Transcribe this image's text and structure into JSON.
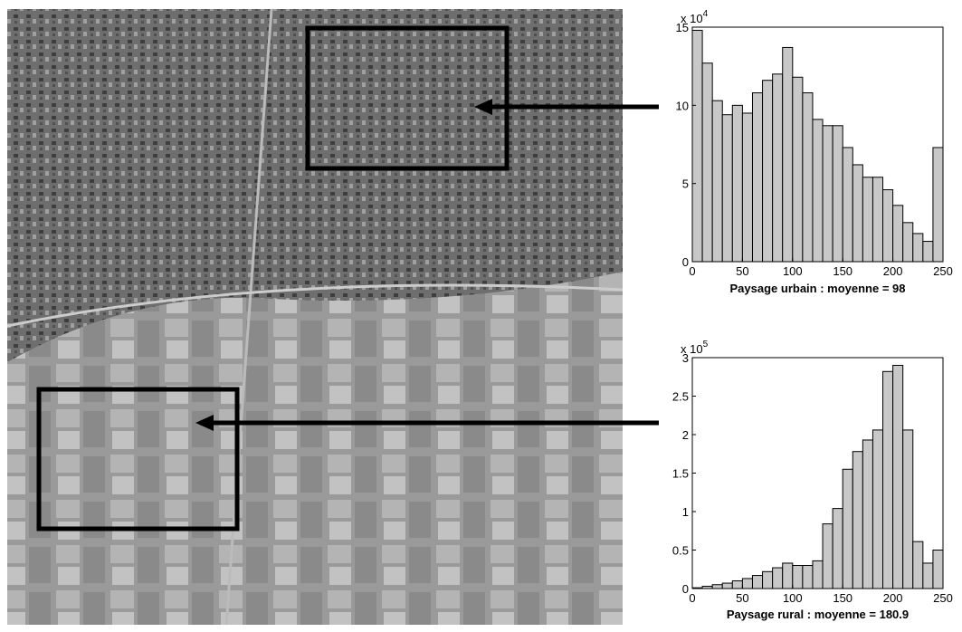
{
  "chart_data": [
    {
      "type": "histogram",
      "title": "Paysage urbain : moyenne = 98",
      "y_multiplier": "x 10",
      "y_multiplier_exp": "4",
      "bins": [
        0,
        10,
        20,
        30,
        40,
        50,
        60,
        70,
        80,
        90,
        100,
        110,
        120,
        130,
        140,
        150,
        160,
        170,
        180,
        190,
        200,
        210,
        220,
        230,
        240,
        250
      ],
      "values": [
        14.8,
        12.7,
        10.3,
        9.4,
        10.0,
        9.5,
        10.8,
        11.6,
        12.0,
        13.7,
        11.8,
        10.8,
        9.1,
        8.7,
        8.7,
        7.3,
        6.2,
        5.4,
        5.4,
        4.6,
        3.6,
        2.5,
        1.8,
        1.3,
        7.3
      ],
      "color": "#c8c8c8",
      "xlim": [
        0,
        250
      ],
      "ylim": [
        0,
        15
      ],
      "xticks": [
        0,
        50,
        100,
        150,
        200,
        250
      ],
      "yticks": [
        0,
        5,
        10,
        15
      ]
    },
    {
      "type": "histogram",
      "title": "Paysage rural : moyenne = 180.9",
      "y_multiplier": "x 10",
      "y_multiplier_exp": "5",
      "bins": [
        0,
        10,
        20,
        30,
        40,
        50,
        60,
        70,
        80,
        90,
        100,
        110,
        120,
        130,
        140,
        150,
        160,
        170,
        180,
        190,
        200,
        210,
        220,
        230,
        240,
        250
      ],
      "values": [
        0.01,
        0.03,
        0.05,
        0.07,
        0.1,
        0.13,
        0.17,
        0.22,
        0.27,
        0.33,
        0.3,
        0.3,
        0.36,
        0.84,
        1.04,
        1.55,
        1.78,
        1.93,
        2.06,
        2.82,
        2.9,
        2.06,
        0.61,
        0.33,
        0.5
      ],
      "color": "#c8c8c8",
      "xlim": [
        0,
        250
      ],
      "ylim": [
        0,
        3
      ],
      "xticks": [
        0,
        50,
        100,
        150,
        200,
        250
      ],
      "yticks": [
        0,
        0.5,
        1,
        1.5,
        2,
        2.5,
        3
      ]
    }
  ]
}
